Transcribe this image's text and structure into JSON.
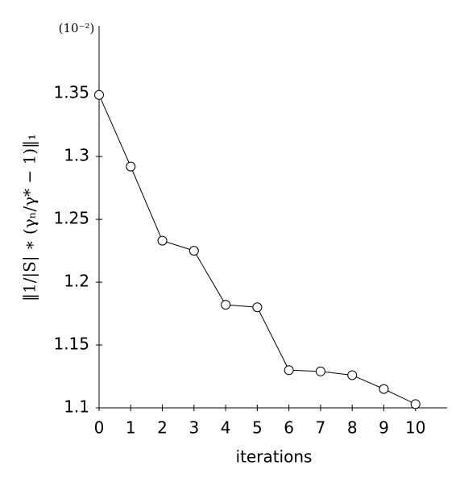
{
  "chart_data": {
    "type": "line",
    "x_label": "iterations",
    "y_label": "‖1/|S| ∗ (γₙ/γ* − 1)‖₁",
    "y_multiplier": "(10⁻²)",
    "x": [
      0,
      1,
      2,
      3,
      4,
      5,
      6,
      7,
      8,
      9,
      10
    ],
    "series": [
      {
        "color": "#000000",
        "values": [
          1.349,
          1.292,
          1.233,
          1.225,
          1.182,
          1.18,
          1.13,
          1.129,
          1.126,
          1.115,
          1.103
        ]
      }
    ],
    "xlim": [
      0,
      11
    ],
    "xticks": [
      0,
      1,
      2,
      3,
      4,
      5,
      6,
      7,
      8,
      9,
      10
    ],
    "ylim": [
      1.1,
      1.404
    ],
    "yticks": [
      1.1,
      1.15,
      1.2,
      1.25,
      1.3,
      1.35
    ]
  }
}
